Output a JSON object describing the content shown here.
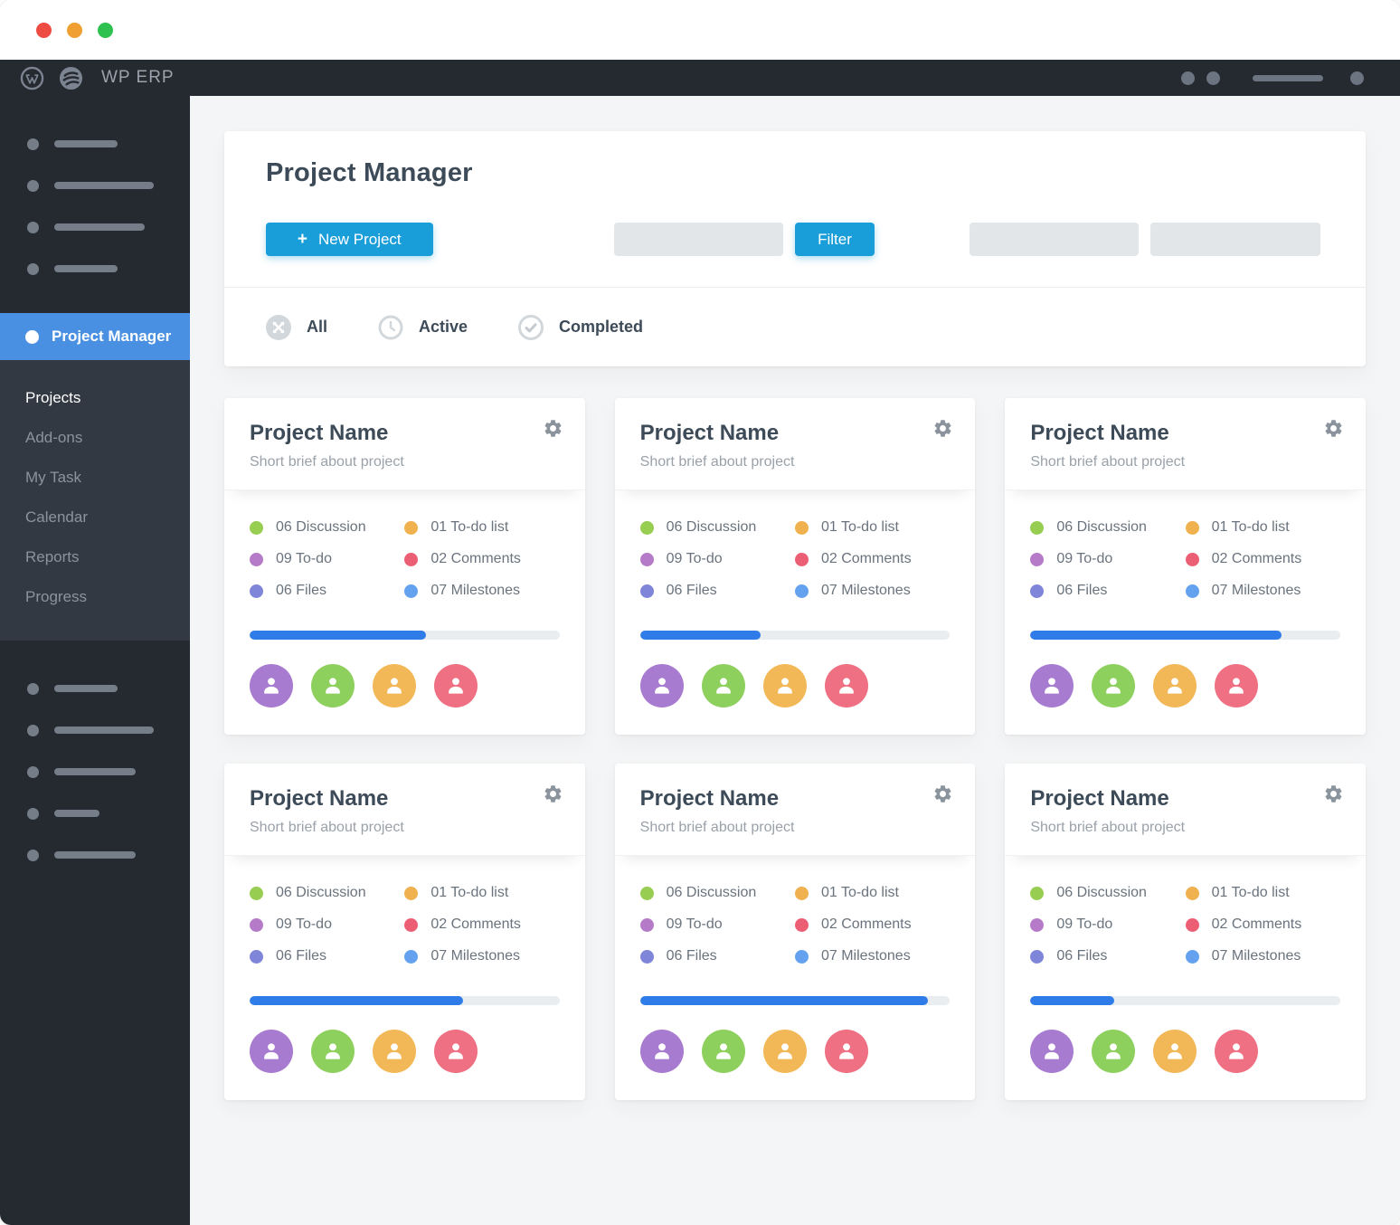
{
  "window": {
    "traffic_lights": {
      "close": "#ee4c43",
      "minimize": "#f0a032",
      "zoom": "#2ec150"
    }
  },
  "admin_bar": {
    "brand": "WP ERP"
  },
  "sidebar": {
    "active_item": "Project Manager",
    "items": [
      {
        "label": "Projects",
        "current": true
      },
      {
        "label": "Add-ons",
        "current": false
      },
      {
        "label": "My Task",
        "current": false
      },
      {
        "label": "Calendar",
        "current": false
      },
      {
        "label": "Reports",
        "current": false
      },
      {
        "label": "Progress",
        "current": false
      }
    ]
  },
  "header": {
    "title": "Project Manager",
    "new_project_label": "New Project",
    "plus_glyph": "+",
    "filter_label": "Filter"
  },
  "tabs": [
    {
      "label": "All",
      "icon": "all-icon"
    },
    {
      "label": "Active",
      "icon": "clock-icon"
    },
    {
      "label": "Completed",
      "icon": "check-icon"
    }
  ],
  "stats": [
    {
      "label": "06 Discussion",
      "color": "#97ce52"
    },
    {
      "label": "01 To-do list",
      "color": "#f0b14f"
    },
    {
      "label": "09 To-do",
      "color": "#b67bc8"
    },
    {
      "label": "02 Comments",
      "color": "#ec5e74"
    },
    {
      "label": "06 Files",
      "color": "#7f85d8"
    },
    {
      "label": "07 Milestones",
      "color": "#64a2f0"
    }
  ],
  "cards": [
    {
      "title": "Project Name",
      "brief": "Short brief about project",
      "progress_percent": 57
    },
    {
      "title": "Project Name",
      "brief": "Short brief about project",
      "progress_percent": 39
    },
    {
      "title": "Project Name",
      "brief": "Short brief about project",
      "progress_percent": 81
    },
    {
      "title": "Project Name",
      "brief": "Short brief about project",
      "progress_percent": 69
    },
    {
      "title": "Project Name",
      "brief": "Short brief about project",
      "progress_percent": 93
    },
    {
      "title": "Project Name",
      "brief": "Short brief about project",
      "progress_percent": 27
    }
  ],
  "avatar_colors": [
    "#a77bd0",
    "#8ed05e",
    "#f2b757",
    "#ee7082"
  ],
  "colors": {
    "accent_button": "#1a9ed9",
    "sidebar_active": "#4a90e2",
    "progress_fill": "#2f7ce8",
    "admin_dark": "#252a31",
    "submenu_dark": "#323942",
    "page_background": "#f4f5f6"
  }
}
